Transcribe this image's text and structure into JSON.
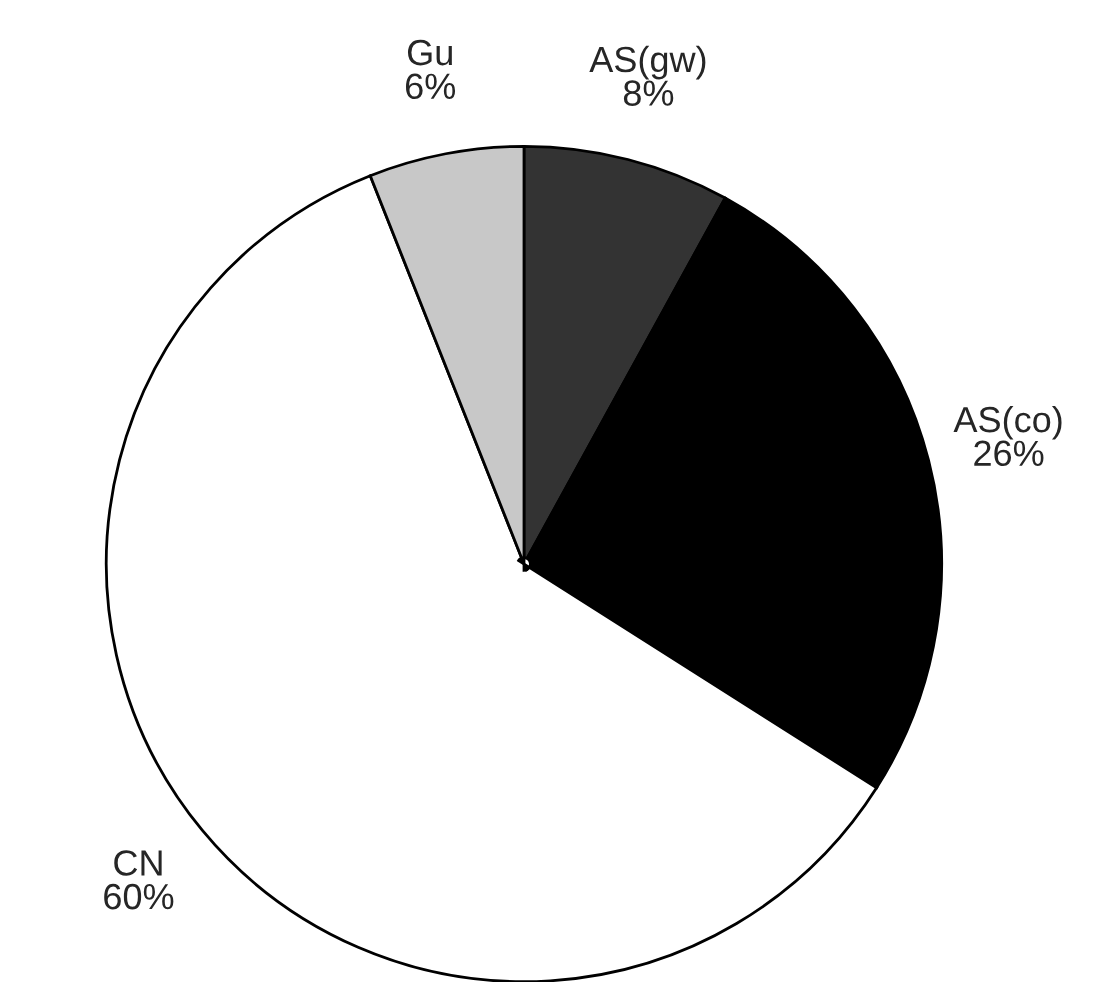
{
  "chart_data": {
    "type": "pie",
    "categories": [
      "AS(gw)",
      "AS(co)",
      "CN",
      "Gu"
    ],
    "values": [
      8,
      26,
      60,
      6
    ],
    "value_labels": [
      "8%",
      "26%",
      "60%",
      "6%"
    ],
    "colors": [
      "#333333",
      "#000000",
      "#ffffff",
      "#c8c8c8"
    ],
    "legend": false
  }
}
